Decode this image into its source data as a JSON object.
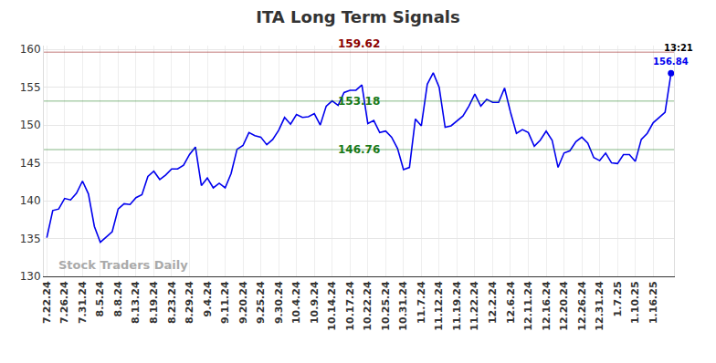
{
  "chart_data": {
    "type": "line",
    "title": "ITA Long Term Signals",
    "color": "#0000ee",
    "grid": true,
    "categories": [
      "7.22.24",
      null,
      null,
      "7.26.24",
      null,
      null,
      "7.31.24",
      null,
      null,
      "8.5.24",
      null,
      null,
      "8.8.24",
      null,
      null,
      "8.13.24",
      null,
      null,
      "8.19.24",
      null,
      null,
      "8.23.24",
      null,
      null,
      "8.29.24",
      null,
      null,
      "9.4.24",
      null,
      null,
      "9.11.24",
      null,
      null,
      "9.20.24",
      null,
      null,
      "9.25.24",
      null,
      null,
      "9.30.24",
      null,
      null,
      "10.4.24",
      null,
      null,
      "10.9.24",
      null,
      null,
      "10.14.24",
      null,
      null,
      "10.17.24",
      null,
      null,
      "10.22.24",
      null,
      null,
      "10.25.24",
      null,
      null,
      "10.31.24",
      null,
      null,
      "11.7.24",
      null,
      null,
      "11.12.24",
      null,
      null,
      "11.19.24",
      null,
      null,
      "11.22.24",
      null,
      null,
      "12.2.24",
      null,
      null,
      "12.6.24",
      null,
      null,
      "12.11.24",
      null,
      null,
      "12.16.24",
      null,
      null,
      "12.20.24",
      null,
      null,
      "12.26.24",
      null,
      null,
      "12.31.24",
      null,
      null,
      "1.7.25",
      null,
      null,
      "1.10.25",
      null,
      null,
      "1.16.25",
      null,
      null,
      null
    ],
    "values": [
      135.1,
      138.7,
      138.9,
      140.3,
      140.1,
      141.0,
      142.6,
      140.9,
      136.6,
      134.5,
      135.2,
      135.9,
      138.9,
      139.6,
      139.5,
      140.4,
      140.8,
      143.2,
      143.9,
      142.8,
      143.4,
      144.2,
      144.2,
      144.7,
      146.1,
      147.1,
      142.0,
      143.0,
      141.7,
      142.3,
      141.7,
      143.6,
      146.8,
      147.3,
      149.0,
      148.6,
      148.4,
      147.4,
      148.1,
      149.3,
      151.0,
      150.1,
      151.4,
      151.0,
      151.1,
      151.5,
      150.0,
      152.5,
      153.2,
      152.6,
      154.3,
      154.6,
      154.6,
      155.3,
      150.2,
      150.6,
      149.0,
      149.2,
      148.4,
      146.9,
      144.1,
      144.4,
      150.8,
      149.9,
      155.4,
      156.9,
      155.0,
      149.7,
      149.9,
      150.5,
      151.2,
      152.5,
      154.1,
      152.5,
      153.4,
      153.0,
      153.0,
      154.9,
      151.7,
      148.9,
      149.4,
      149.0,
      147.2,
      148.0,
      149.2,
      148.0,
      144.4,
      146.3,
      146.6,
      147.8,
      148.4,
      147.6,
      145.7,
      145.3,
      146.3,
      145.0,
      144.9,
      146.1,
      146.1,
      145.2,
      148.1,
      148.9,
      150.3,
      151.0,
      151.7,
      156.84
    ],
    "ylim": [
      130,
      160.5
    ],
    "yticks": [
      130,
      135,
      140,
      145,
      150,
      155,
      160
    ],
    "horizontal_lines": [
      {
        "value": 159.62,
        "label": "159.62",
        "color": "#8b0000"
      },
      {
        "value": 153.18,
        "label": "153.18",
        "color": "#1a7a1a"
      },
      {
        "value": 146.76,
        "label": "146.76",
        "color": "#1a7a1a"
      }
    ],
    "last_point": {
      "time": "13:21",
      "value": 156.84,
      "label": "156.84"
    },
    "watermark": "Stock Traders Daily"
  }
}
